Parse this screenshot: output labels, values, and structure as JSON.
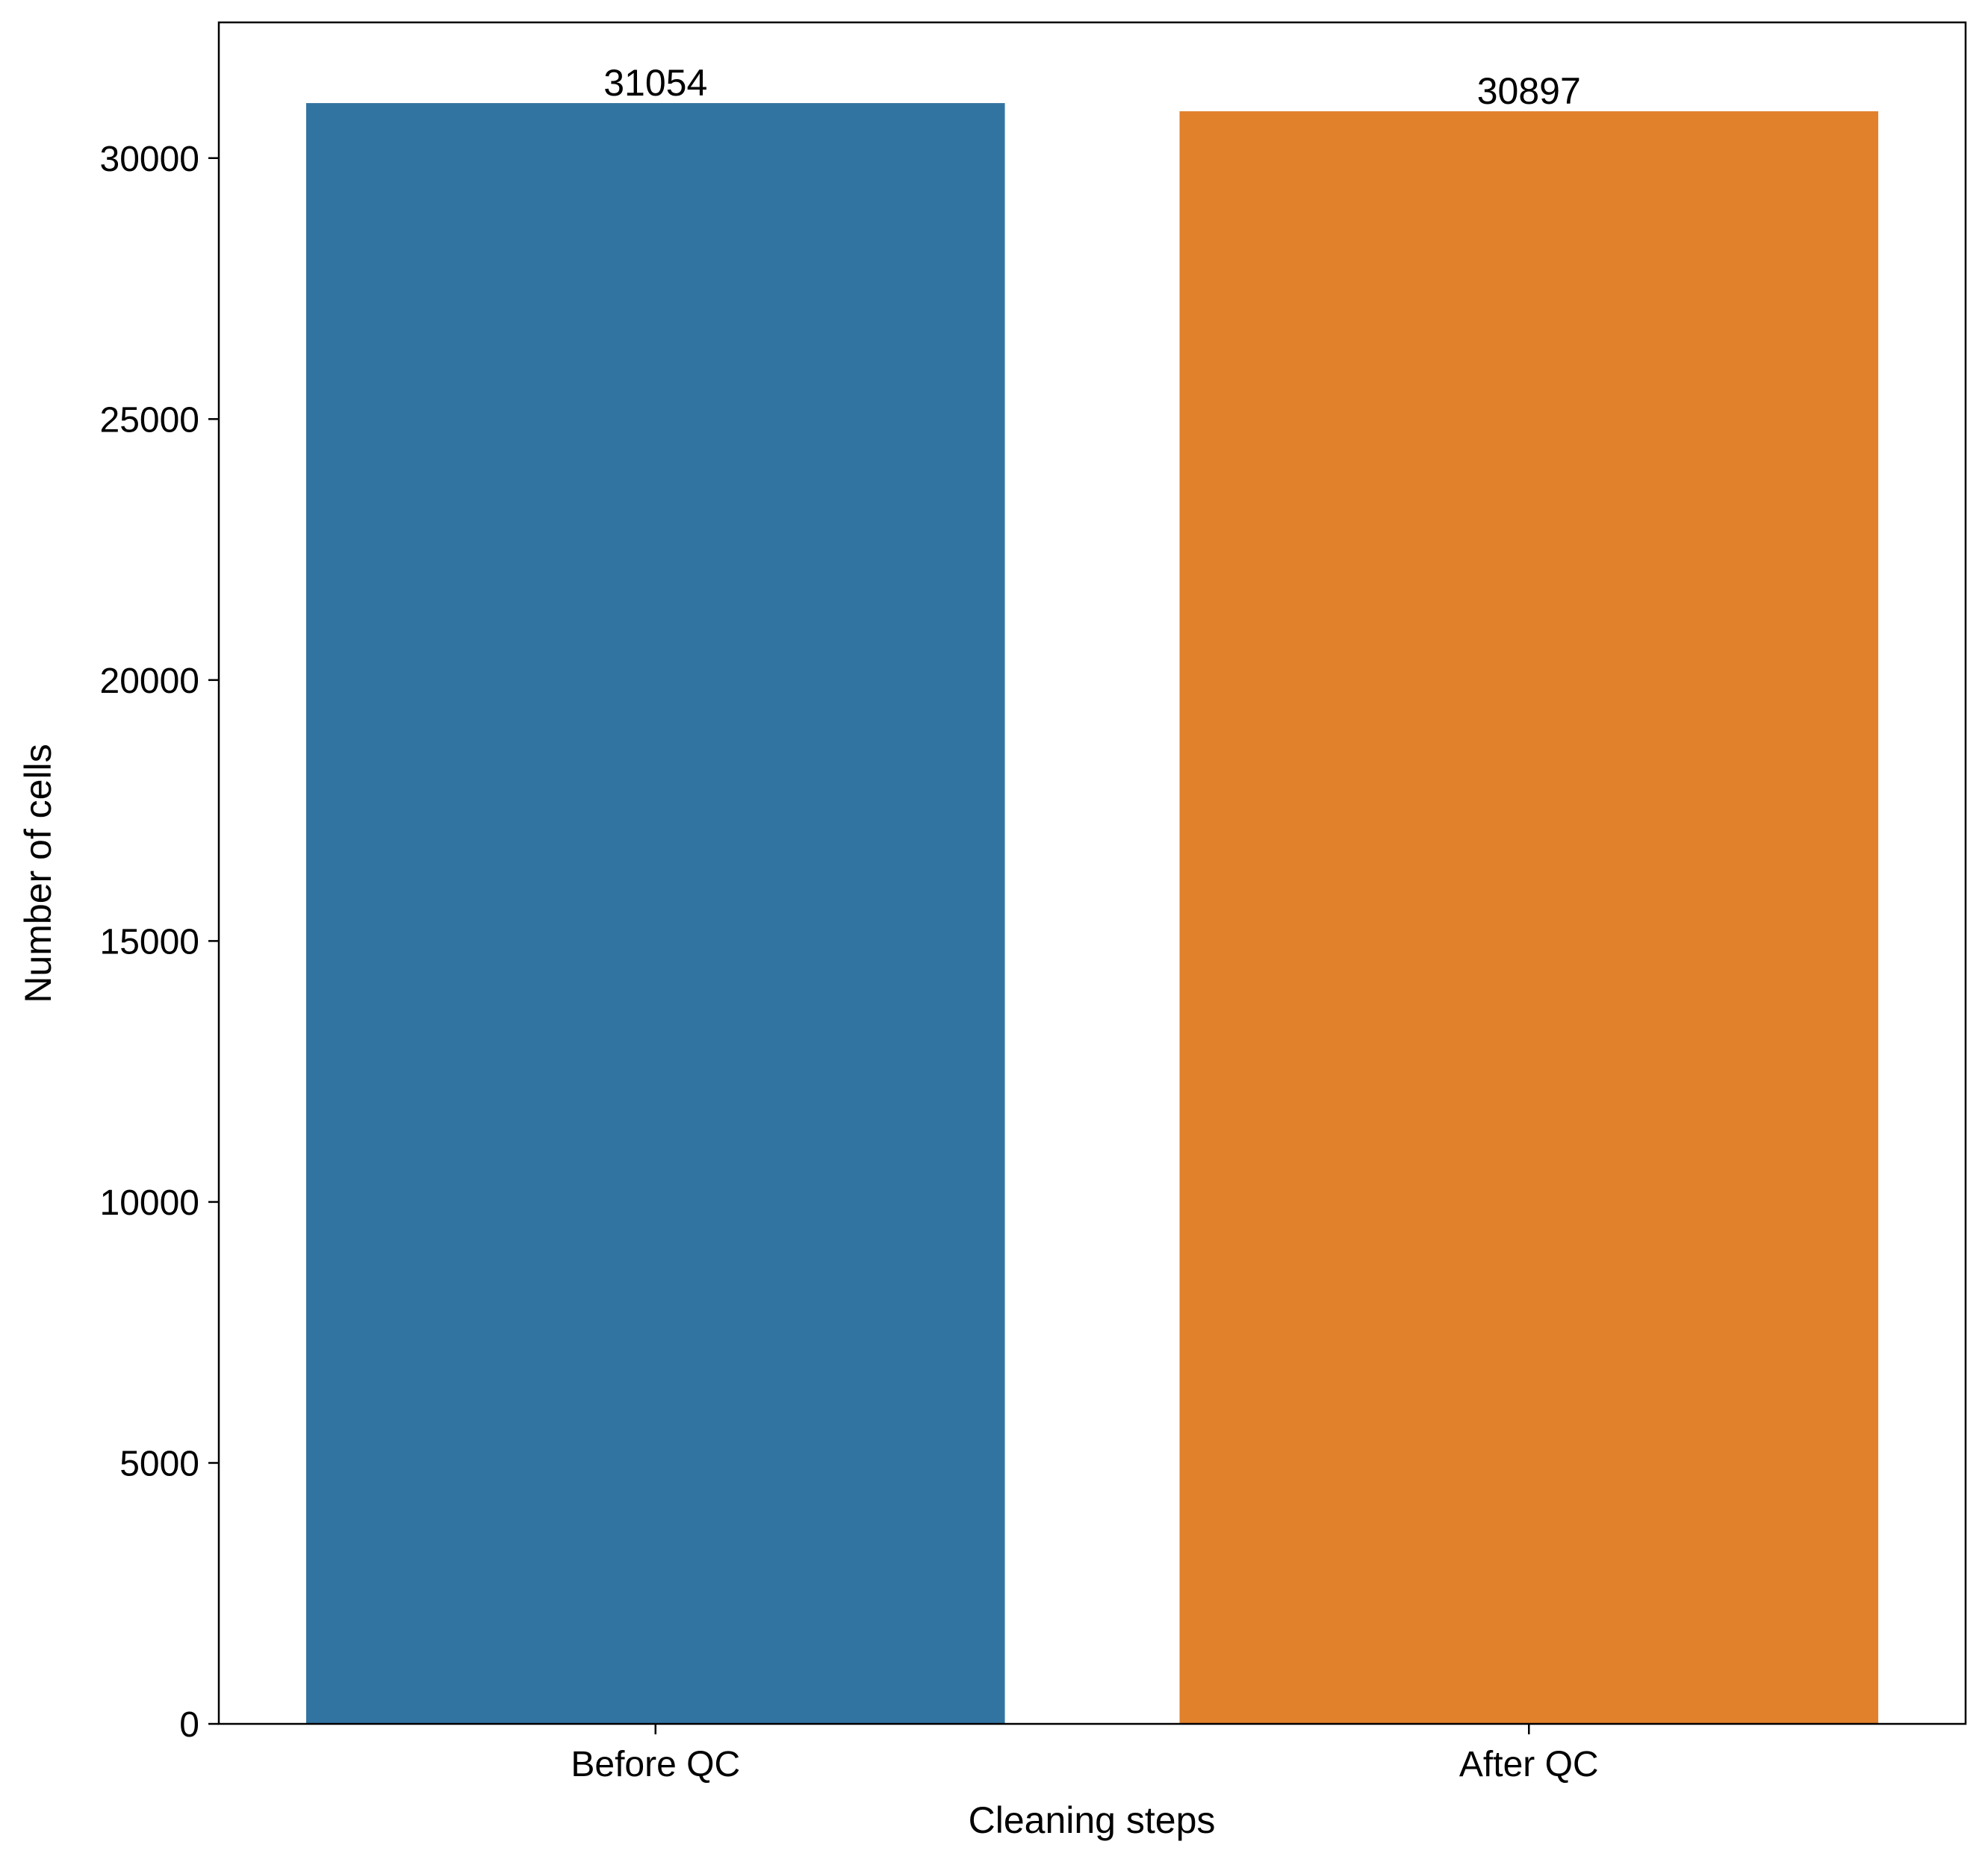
{
  "chart_data": {
    "type": "bar",
    "title": "",
    "xlabel": "Cleaning steps",
    "ylabel": "Number of cells",
    "categories": [
      "Before QC",
      "After QC"
    ],
    "values": [
      31054,
      30897
    ],
    "data_labels": [
      "31054",
      "30897"
    ],
    "colors": [
      "#3274A1",
      "#E1812C"
    ],
    "ylim": [
      0,
      32600
    ],
    "yticks": [
      0,
      5000,
      10000,
      15000,
      20000,
      25000,
      30000
    ],
    "ytick_labels": [
      "0",
      "5000",
      "10000",
      "15000",
      "20000",
      "25000",
      "30000"
    ],
    "grid": false,
    "legend": "none"
  }
}
